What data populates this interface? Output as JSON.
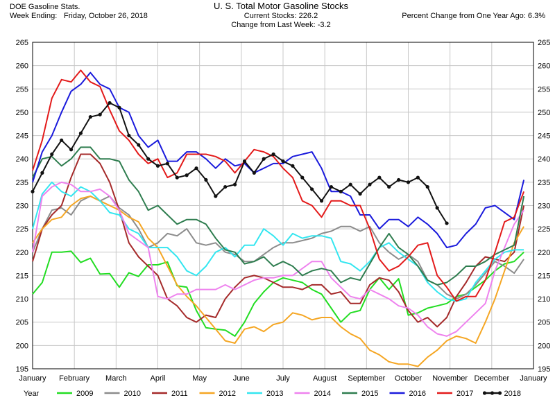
{
  "header": {
    "left_line1": "DOE Gasoline Stats.",
    "left_line2_label": "Week Ending:",
    "left_line2_value": "Friday, October 26, 2018",
    "center_line1": "U. S. Total Motor Gasoline Stocks",
    "center_line2": "Current Stocks: 226.2",
    "center_line3": "Change from Last Week: -3.2",
    "right_line1": "Percent Change from One Year Ago:  6.3%"
  },
  "legend_title": "Year",
  "chart_data": {
    "type": "line",
    "title": "U. S. Total Motor Gasoline Stocks",
    "xlabel": "",
    "ylabel": "",
    "x_unit": "week of year",
    "xlim": [
      1,
      53
    ],
    "ylim": [
      195,
      265
    ],
    "y_ticks": [
      195,
      200,
      205,
      210,
      215,
      220,
      225,
      230,
      235,
      240,
      245,
      250,
      255,
      260,
      265
    ],
    "x_ticks": [
      "January",
      "February",
      "March",
      "April",
      "May",
      "June",
      "July",
      "August",
      "September",
      "October",
      "November",
      "December",
      "January"
    ],
    "grid": true,
    "legend_position": "bottom",
    "series": [
      {
        "name": "2009",
        "color": "#22dd22",
        "values": [
          211.0,
          213.5,
          220.0,
          220.0,
          220.2,
          217.8,
          218.7,
          215.3,
          215.4,
          212.5,
          215.6,
          214.8,
          217.3,
          217.3,
          217.9,
          212.8,
          212.5,
          207.5,
          203.8,
          203.5,
          203.3,
          202.0,
          205.0,
          209.0,
          211.5,
          213.5,
          214.5,
          214.0,
          213.5,
          212.0,
          211.0,
          208.0,
          205.0,
          207.0,
          207.5,
          212.0,
          214.5,
          212.0,
          214.3,
          206.5,
          207.0,
          208.0,
          208.5,
          209.0,
          210.5,
          211.0,
          212.5,
          214.0,
          216.0,
          217.5,
          218.0,
          220.0
        ]
      },
      {
        "name": "2010",
        "color": "#8c8c8c",
        "values": [
          220.0,
          225.0,
          229.0,
          229.5,
          228.0,
          231.0,
          232.0,
          231.0,
          232.0,
          229.5,
          228.0,
          225.0,
          221.0,
          222.0,
          224.0,
          223.5,
          225.0,
          222.0,
          221.5,
          222.0,
          220.0,
          219.5,
          218.0,
          218.0,
          219.5,
          221.0,
          222.0,
          222.0,
          222.5,
          223.0,
          224.0,
          224.5,
          225.5,
          225.5,
          224.5,
          225.5,
          222.0,
          220.0,
          218.5,
          219.5,
          218.0,
          214.0,
          213.0,
          211.0,
          210.0,
          211.0,
          213.0,
          215.5,
          218.0,
          217.0,
          215.5,
          218.5
        ]
      },
      {
        "name": "2011",
        "color": "#a52a2a",
        "values": [
          218.0,
          225.0,
          228.0,
          230.0,
          236.0,
          241.0,
          241.0,
          239.0,
          235.0,
          229.0,
          222.0,
          219.0,
          217.0,
          215.0,
          210.0,
          208.5,
          206.0,
          205.0,
          206.5,
          206.0,
          210.0,
          212.5,
          214.5,
          215.0,
          214.5,
          213.5,
          212.5,
          212.5,
          212.0,
          213.0,
          213.0,
          211.0,
          211.5,
          209.0,
          209.0,
          213.0,
          214.5,
          214.0,
          211.5,
          207.5,
          205.0,
          206.0,
          204.0,
          206.0,
          210.5,
          213.5,
          217.0,
          219.0,
          218.5,
          218.0,
          220.0,
          230.0
        ]
      },
      {
        "name": "2012",
        "color": "#f5a623",
        "values": [
          222.0,
          225.0,
          227.0,
          227.5,
          230.0,
          231.5,
          232.0,
          231.0,
          230.0,
          229.0,
          227.5,
          226.5,
          223.0,
          221.0,
          217.0,
          213.0,
          210.5,
          208.5,
          206.0,
          203.5,
          201.0,
          200.5,
          203.5,
          204.0,
          203.0,
          204.5,
          205.0,
          207.0,
          206.5,
          205.5,
          206.0,
          206.0,
          204.0,
          202.5,
          201.5,
          199.0,
          198.0,
          196.5,
          196.0,
          196.0,
          195.5,
          197.5,
          199.0,
          201.0,
          202.0,
          201.5,
          200.5,
          205.0,
          210.0,
          216.0,
          222.0,
          225.5
        ]
      },
      {
        "name": "2013",
        "color": "#33e6f0",
        "values": [
          225.0,
          232.5,
          235.0,
          233.0,
          232.0,
          234.0,
          233.0,
          231.0,
          228.5,
          228.0,
          225.0,
          224.0,
          221.0,
          221.0,
          221.0,
          219.0,
          216.0,
          215.0,
          217.0,
          220.0,
          221.0,
          219.0,
          221.5,
          221.5,
          225.0,
          223.5,
          221.5,
          224.0,
          223.0,
          223.5,
          223.5,
          223.0,
          218.0,
          217.5,
          216.0,
          218.0,
          221.0,
          222.0,
          220.0,
          218.5,
          217.0,
          213.5,
          211.5,
          210.0,
          209.5,
          210.0,
          213.5,
          216.0,
          218.5,
          220.0,
          220.5,
          220.5
        ]
      },
      {
        "name": "2014",
        "color": "#ee82ee",
        "values": [
          220.0,
          232.0,
          234.0,
          235.0,
          234.5,
          233.0,
          233.0,
          233.5,
          232.0,
          229.0,
          224.0,
          222.5,
          221.0,
          210.5,
          210.0,
          211.0,
          211.0,
          212.0,
          212.0,
          212.0,
          213.0,
          212.0,
          213.0,
          214.0,
          214.5,
          214.5,
          215.0,
          215.0,
          216.5,
          218.0,
          218.0,
          214.5,
          212.5,
          210.5,
          210.0,
          212.0,
          211.0,
          210.0,
          208.5,
          208.0,
          206.5,
          204.0,
          202.5,
          202.0,
          203.0,
          205.0,
          207.0,
          209.0,
          216.0,
          221.0,
          226.0,
          229.0
        ]
      },
      {
        "name": "2015",
        "color": "#2e7d4f",
        "values": [
          236.0,
          240.0,
          240.5,
          238.5,
          240.0,
          242.5,
          242.5,
          240.0,
          240.0,
          239.5,
          235.5,
          233.0,
          229.0,
          230.0,
          228.0,
          226.0,
          227.0,
          227.0,
          226.0,
          223.0,
          220.5,
          220.0,
          217.5,
          218.0,
          219.0,
          217.0,
          218.0,
          217.0,
          215.0,
          216.0,
          216.5,
          216.0,
          213.5,
          214.5,
          214.0,
          217.5,
          221.0,
          224.0,
          221.0,
          219.5,
          217.0,
          214.0,
          213.0,
          213.5,
          215.0,
          217.0,
          217.0,
          218.0,
          219.5,
          220.5,
          221.5,
          232.0
        ]
      },
      {
        "name": "2016",
        "color": "#1a1adc",
        "values": [
          235.0,
          241.5,
          245.0,
          250.0,
          254.5,
          256.0,
          258.5,
          256.0,
          255.0,
          251.0,
          250.0,
          245.0,
          242.5,
          244.0,
          239.5,
          239.5,
          241.5,
          241.5,
          240.0,
          238.0,
          240.0,
          238.5,
          239.0,
          237.0,
          238.0,
          239.0,
          239.0,
          240.5,
          241.0,
          241.5,
          238.0,
          233.0,
          233.0,
          232.0,
          228.0,
          228.0,
          225.0,
          227.0,
          227.0,
          225.5,
          227.5,
          226.0,
          224.0,
          221.0,
          221.5,
          224.0,
          226.0,
          229.5,
          230.0,
          228.5,
          227.0,
          235.5
        ]
      },
      {
        "name": "2017",
        "color": "#e31a1a",
        "values": [
          237.5,
          244.0,
          253.0,
          257.0,
          256.5,
          259.0,
          256.5,
          255.5,
          250.5,
          246.0,
          244.0,
          241.0,
          239.0,
          240.0,
          236.0,
          237.0,
          241.0,
          241.0,
          241.0,
          240.5,
          239.5,
          237.0,
          239.5,
          242.0,
          241.5,
          240.5,
          238.0,
          236.0,
          231.0,
          230.0,
          227.5,
          231.0,
          231.0,
          230.0,
          230.0,
          225.0,
          218.5,
          216.0,
          217.0,
          219.0,
          221.5,
          222.0,
          215.0,
          212.5,
          209.5,
          210.5,
          210.5,
          214.0,
          220.0,
          226.5,
          227.5,
          233.0
        ]
      },
      {
        "name": "2018",
        "color": "#111111",
        "values": [
          233.0,
          237.0,
          241.0,
          244.0,
          242.0,
          245.5,
          249.0,
          249.5,
          252.0,
          251.0,
          245.0,
          243.0,
          240.0,
          238.5,
          239.0,
          236.0,
          236.5,
          238.0,
          235.5,
          232.0,
          234.0,
          234.5,
          239.5,
          237.0,
          240.0,
          241.0,
          239.5,
          238.5,
          236.0,
          233.5,
          231.0,
          234.0,
          233.0,
          234.5,
          232.5,
          234.5,
          236.0,
          234.0,
          235.5,
          235.0,
          236.0,
          234.0,
          229.5,
          226.2
        ]
      }
    ]
  }
}
